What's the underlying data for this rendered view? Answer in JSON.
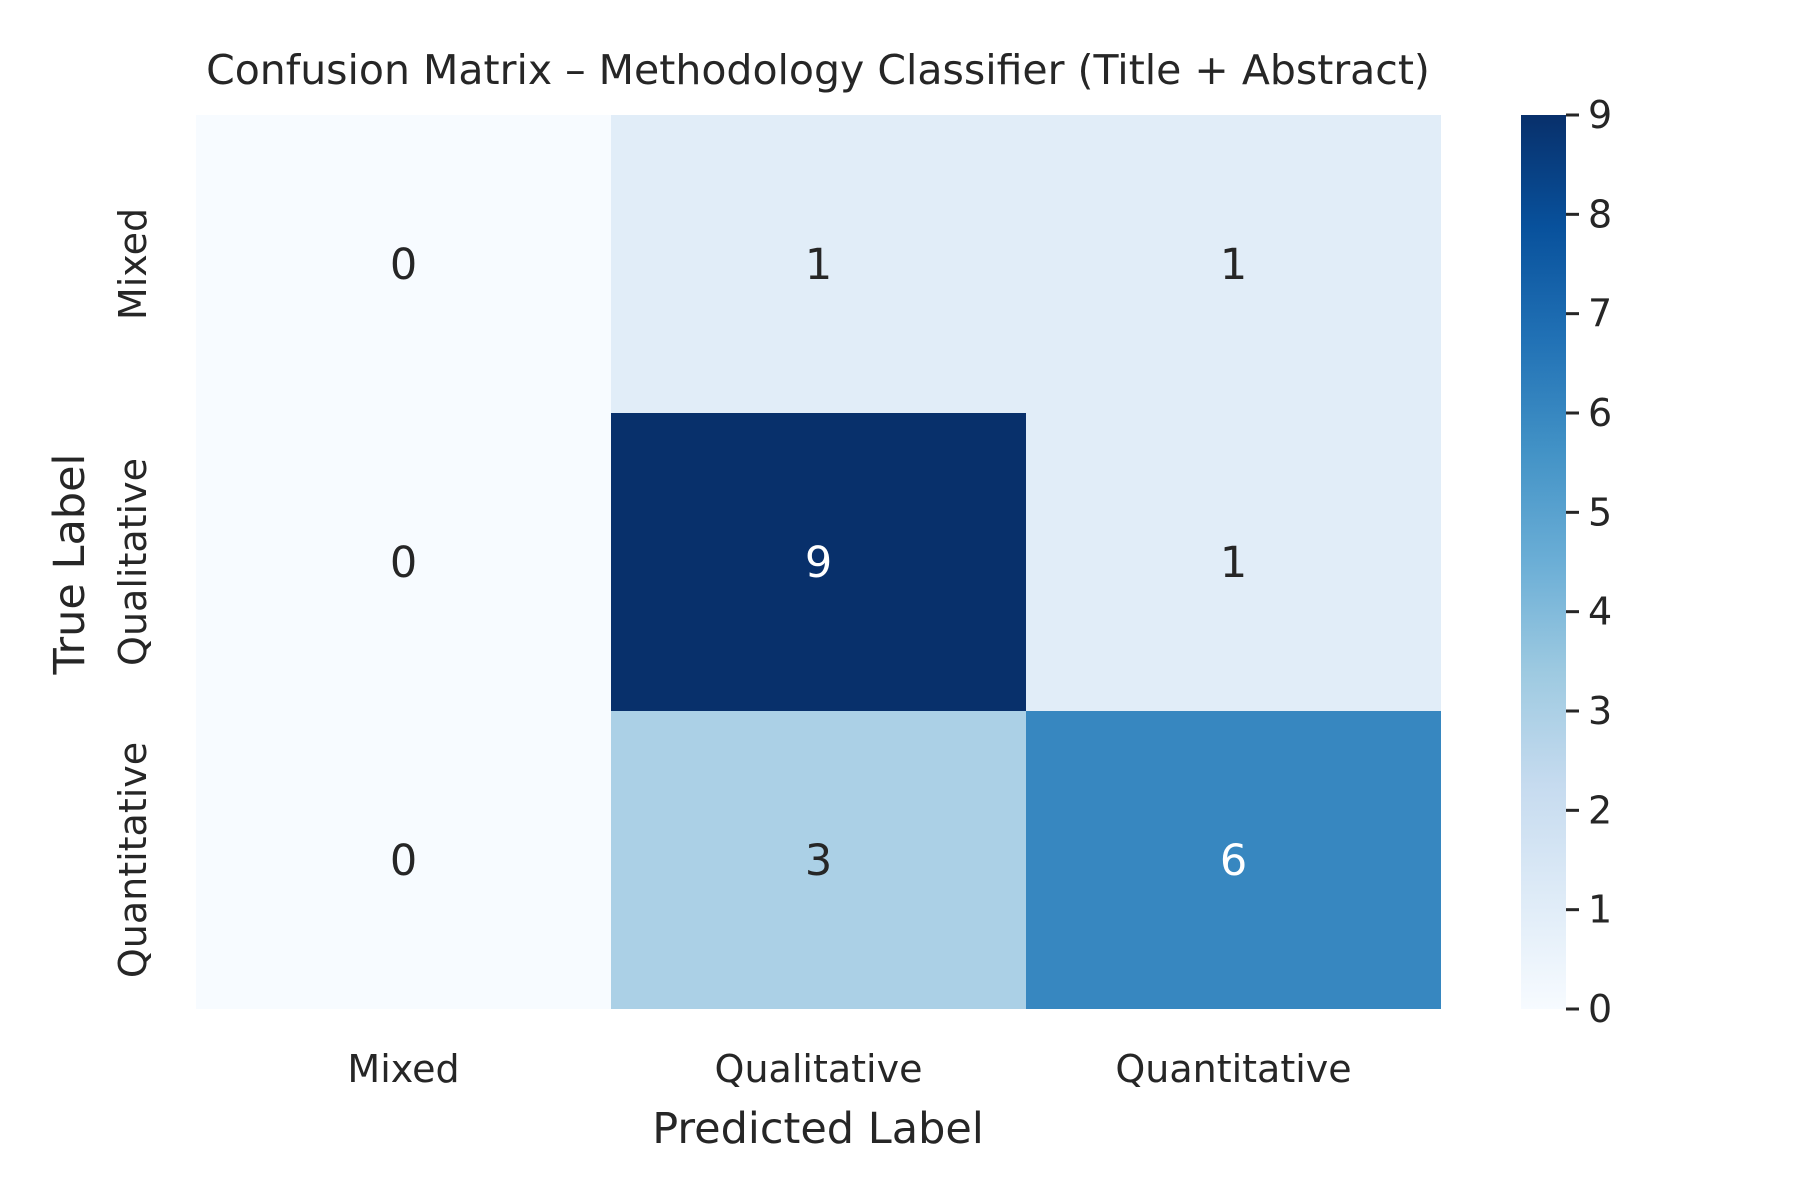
{
  "chart_data": {
    "type": "heatmap",
    "title": "Confusion Matrix – Methodology Classifier (Title + Abstract)",
    "xlabel": "Predicted Label",
    "ylabel": "True Label",
    "x_categories": [
      "Mixed",
      "Qualitative",
      "Quantitative"
    ],
    "y_categories": [
      "Mixed",
      "Qualitative",
      "Quantitative"
    ],
    "values": [
      [
        0,
        1,
        1
      ],
      [
        0,
        9,
        1
      ],
      [
        0,
        3,
        6
      ]
    ],
    "colorbar": {
      "min": 0,
      "max": 9,
      "ticks": [
        "0",
        "1",
        "2",
        "3",
        "4",
        "5",
        "6",
        "7",
        "8",
        "9"
      ]
    },
    "colormap": [
      "#f7fbff",
      "#deebf7",
      "#c6dbef",
      "#9ecae1",
      "#6baed6",
      "#4292c6",
      "#2171b5",
      "#08519c",
      "#08306b"
    ],
    "annotations": true,
    "grid": false,
    "legend": "colorbar-right"
  }
}
